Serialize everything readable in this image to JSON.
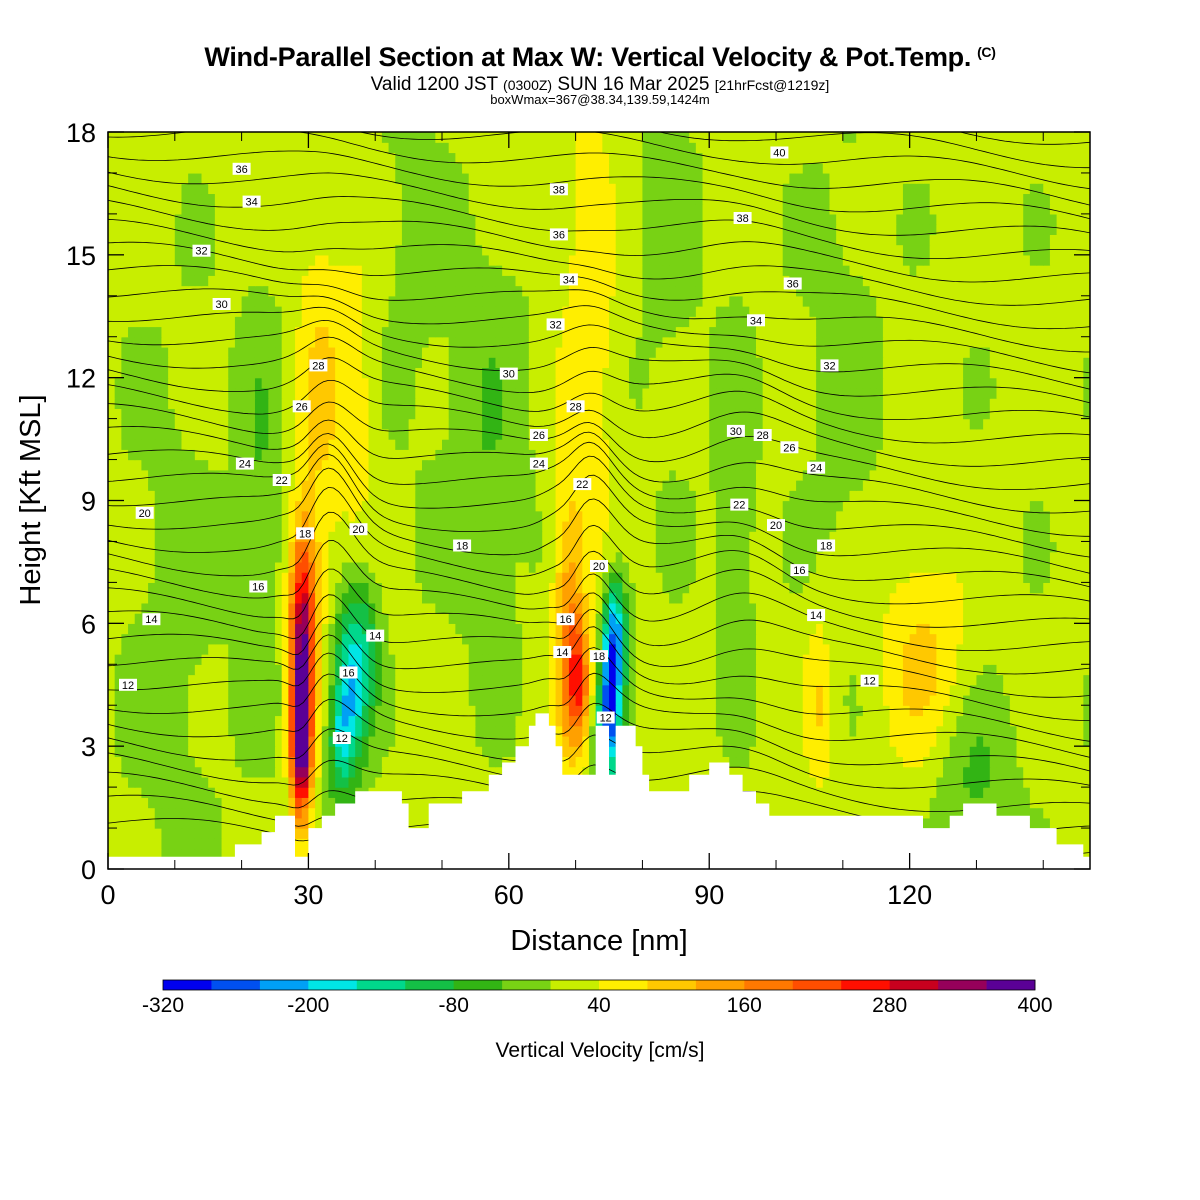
{
  "header": {
    "title": "Wind-Parallel Section at Max W: Vertical Velocity & Pot.Temp.",
    "copyright": "(C)",
    "valid_prefix": "Valid 1200 JST",
    "valid_z": "(0300Z)",
    "valid_date": "SUN 16 Mar 2025",
    "forecast": "[21hrFcst@1219z]",
    "boxmax": "boxWmax=367@38.34,139.59,1424m"
  },
  "colors": {
    "shading": [
      "#0000ee",
      "#0050f0",
      "#00a0f5",
      "#00e6e6",
      "#00d88c",
      "#14c046",
      "#32b414",
      "#78d214",
      "#c8ee00",
      "#ffee00",
      "#ffc800",
      "#ffa000",
      "#ff7800",
      "#ff4e00",
      "#ff0f00",
      "#c8001e",
      "#96005a",
      "#5a0096"
    ]
  },
  "chart_data": {
    "type": "heatmap",
    "title": "Wind-Parallel Section at Max W: Vertical Velocity & Pot.Temp.",
    "xlabel": "Distance [nm]",
    "ylabel": "Height [Kft MSL]",
    "xlim": [
      0,
      147
    ],
    "ylim": [
      0,
      18
    ],
    "xticks": [
      "0",
      "30",
      "60",
      "90",
      "120"
    ],
    "yticks": [
      "0",
      "3",
      "6",
      "9",
      "12",
      "15",
      "18"
    ],
    "colorbar": {
      "label": "Vertical Velocity [cm/s]",
      "levels": [
        -320,
        -280,
        -240,
        -200,
        -160,
        -120,
        -80,
        -40,
        0,
        40,
        80,
        120,
        160,
        200,
        240,
        280,
        320,
        360,
        400
      ],
      "tick_labels": [
        "-320",
        "-200",
        "-80",
        "40",
        "160",
        "280",
        "400"
      ]
    },
    "background_w": 10,
    "cells": [
      {
        "x": 29.0,
        "y": 4.2,
        "sx": 1.2,
        "sy": 2.0,
        "w": 300
      },
      {
        "x": 29.3,
        "y": 6.5,
        "sx": 1.6,
        "sy": 1.6,
        "w": 150
      },
      {
        "x": 28.8,
        "y": 2.8,
        "sx": 1.0,
        "sy": 1.0,
        "w": 180
      },
      {
        "x": 36.0,
        "y": 4.3,
        "sx": 1.6,
        "sy": 1.6,
        "w": -180
      },
      {
        "x": 38.5,
        "y": 5.3,
        "sx": 1.6,
        "sy": 1.3,
        "w": -110
      },
      {
        "x": 34.5,
        "y": 3.0,
        "sx": 1.2,
        "sy": 1.0,
        "w": -90
      },
      {
        "x": 31.5,
        "y": 11.5,
        "sx": 2.5,
        "sy": 3.5,
        "w": 70
      },
      {
        "x": 37.0,
        "y": 11.5,
        "sx": 2.2,
        "sy": 2.5,
        "w": 55
      },
      {
        "x": 69.0,
        "y": 5.8,
        "sx": 1.6,
        "sy": 2.2,
        "w": 140
      },
      {
        "x": 70.5,
        "y": 4.5,
        "sx": 1.2,
        "sy": 1.0,
        "w": 160
      },
      {
        "x": 72.0,
        "y": 13.0,
        "sx": 3.0,
        "sy": 5.0,
        "w": 60
      },
      {
        "x": 75.3,
        "y": 4.3,
        "sx": 1.1,
        "sy": 1.4,
        "w": -260
      },
      {
        "x": 76.3,
        "y": 5.8,
        "sx": 1.3,
        "sy": 1.0,
        "w": -150
      },
      {
        "x": 74.0,
        "y": 3.1,
        "sx": 1.0,
        "sy": 0.8,
        "w": -140
      },
      {
        "x": 122.0,
        "y": 5.0,
        "sx": 4.5,
        "sy": 2.0,
        "w": 80
      },
      {
        "x": 106.5,
        "y": 4.0,
        "sx": 1.6,
        "sy": 1.6,
        "w": 70
      },
      {
        "x": 23.0,
        "y": 9.0,
        "sx": 2.5,
        "sy": 3.5,
        "w": -50
      },
      {
        "x": 57.0,
        "y": 10.5,
        "sx": 4.0,
        "sy": 3.5,
        "w": -45
      },
      {
        "x": 94.0,
        "y": 9.0,
        "sx": 2.0,
        "sy": 3.0,
        "w": -45
      },
      {
        "x": 129.0,
        "y": 2.2,
        "sx": 4.5,
        "sy": 1.5,
        "w": -60
      },
      {
        "x": 10.0,
        "y": 5.5,
        "sx": 5.0,
        "sy": 5.0,
        "w": -25
      },
      {
        "x": 110.0,
        "y": 12.0,
        "sx": 4.0,
        "sy": 4.0,
        "w": -25
      },
      {
        "x": 84.0,
        "y": 15.0,
        "sx": 4.0,
        "sy": 4.0,
        "w": -20
      },
      {
        "x": 46.0,
        "y": 15.0,
        "sx": 4.0,
        "sy": 4.0,
        "w": -20
      }
    ],
    "terrain": [
      [
        0,
        0.3
      ],
      [
        19,
        0.3
      ],
      [
        19,
        0.6
      ],
      [
        23,
        0.6
      ],
      [
        23,
        0.9
      ],
      [
        25,
        0.9
      ],
      [
        25,
        1.3
      ],
      [
        28,
        1.3
      ],
      [
        28,
        0.3
      ],
      [
        30,
        0.3
      ],
      [
        30,
        1.0
      ],
      [
        32,
        1.0
      ],
      [
        32,
        1.3
      ],
      [
        34,
        1.3
      ],
      [
        34,
        1.6
      ],
      [
        37,
        1.6
      ],
      [
        37,
        1.9
      ],
      [
        44,
        1.9
      ],
      [
        44,
        1.6
      ],
      [
        45,
        1.6
      ],
      [
        45,
        1.0
      ],
      [
        48,
        1.0
      ],
      [
        48,
        1.6
      ],
      [
        53,
        1.6
      ],
      [
        53,
        1.9
      ],
      [
        57,
        1.9
      ],
      [
        57,
        2.3
      ],
      [
        59,
        2.3
      ],
      [
        59,
        2.6
      ],
      [
        61,
        2.6
      ],
      [
        61,
        3.0
      ],
      [
        63,
        3.0
      ],
      [
        63,
        3.5
      ],
      [
        64,
        3.5
      ],
      [
        64,
        3.8
      ],
      [
        66,
        3.8
      ],
      [
        66,
        3.5
      ],
      [
        67,
        3.5
      ],
      [
        67,
        3.0
      ],
      [
        68,
        3.0
      ],
      [
        68,
        2.3
      ],
      [
        73,
        2.3
      ],
      [
        73,
        3.5
      ],
      [
        75,
        3.5
      ],
      [
        75,
        2.3
      ],
      [
        76,
        2.3
      ],
      [
        76,
        3.5
      ],
      [
        79,
        3.5
      ],
      [
        79,
        3.0
      ],
      [
        80,
        3.0
      ],
      [
        80,
        2.3
      ],
      [
        81,
        2.3
      ],
      [
        81,
        1.9
      ],
      [
        87,
        1.9
      ],
      [
        87,
        2.3
      ],
      [
        90,
        2.3
      ],
      [
        90,
        2.6
      ],
      [
        93,
        2.6
      ],
      [
        93,
        2.3
      ],
      [
        95,
        2.3
      ],
      [
        95,
        1.9
      ],
      [
        97,
        1.9
      ],
      [
        97,
        1.6
      ],
      [
        99,
        1.6
      ],
      [
        99,
        1.3
      ],
      [
        122,
        1.3
      ],
      [
        122,
        1.0
      ],
      [
        126,
        1.0
      ],
      [
        126,
        1.3
      ],
      [
        128,
        1.3
      ],
      [
        128,
        1.6
      ],
      [
        133,
        1.6
      ],
      [
        133,
        1.3
      ],
      [
        138,
        1.3
      ],
      [
        138,
        1.0
      ],
      [
        142,
        1.0
      ],
      [
        142,
        0.6
      ],
      [
        146,
        0.6
      ],
      [
        146,
        0.3
      ],
      [
        147,
        0.3
      ],
      [
        147,
        0
      ],
      [
        0,
        0
      ]
    ],
    "theta_start": 11.4,
    "theta_step": 0.5,
    "theta_count": 60,
    "contour_labels": [
      {
        "text": "36",
        "x": 20,
        "y": 17.1
      },
      {
        "text": "34",
        "x": 21.5,
        "y": 16.3
      },
      {
        "text": "32",
        "x": 14,
        "y": 15.1
      },
      {
        "text": "30",
        "x": 17,
        "y": 13.8
      },
      {
        "text": "28",
        "x": 31.5,
        "y": 12.3
      },
      {
        "text": "26",
        "x": 29,
        "y": 11.3
      },
      {
        "text": "24",
        "x": 20.5,
        "y": 9.9
      },
      {
        "text": "22",
        "x": 26,
        "y": 9.5
      },
      {
        "text": "20",
        "x": 5.5,
        "y": 8.7
      },
      {
        "text": "18",
        "x": 29.5,
        "y": 8.2
      },
      {
        "text": "20",
        "x": 37.5,
        "y": 8.3
      },
      {
        "text": "16",
        "x": 22.5,
        "y": 6.9
      },
      {
        "text": "14",
        "x": 6.5,
        "y": 6.1
      },
      {
        "text": "14",
        "x": 40,
        "y": 5.7
      },
      {
        "text": "16",
        "x": 36,
        "y": 4.8
      },
      {
        "text": "12",
        "x": 3,
        "y": 4.5
      },
      {
        "text": "12",
        "x": 35,
        "y": 3.2
      },
      {
        "text": "18",
        "x": 53,
        "y": 7.9
      },
      {
        "text": "38",
        "x": 67.5,
        "y": 16.6
      },
      {
        "text": "36",
        "x": 67.5,
        "y": 15.5
      },
      {
        "text": "34",
        "x": 69,
        "y": 14.4
      },
      {
        "text": "32",
        "x": 67,
        "y": 13.3
      },
      {
        "text": "30",
        "x": 60,
        "y": 12.1
      },
      {
        "text": "28",
        "x": 70,
        "y": 11.3
      },
      {
        "text": "26",
        "x": 64.5,
        "y": 10.6
      },
      {
        "text": "24",
        "x": 64.5,
        "y": 9.9
      },
      {
        "text": "22",
        "x": 71,
        "y": 9.4
      },
      {
        "text": "20",
        "x": 73.5,
        "y": 7.4
      },
      {
        "text": "16",
        "x": 68.5,
        "y": 6.1
      },
      {
        "text": "14",
        "x": 68,
        "y": 5.3
      },
      {
        "text": "18",
        "x": 73.5,
        "y": 5.2
      },
      {
        "text": "12",
        "x": 74.5,
        "y": 3.7
      },
      {
        "text": "40",
        "x": 100.5,
        "y": 17.5
      },
      {
        "text": "38",
        "x": 95,
        "y": 15.9
      },
      {
        "text": "36",
        "x": 102.5,
        "y": 14.3
      },
      {
        "text": "34",
        "x": 97,
        "y": 13.4
      },
      {
        "text": "32",
        "x": 108,
        "y": 12.3
      },
      {
        "text": "30",
        "x": 94,
        "y": 10.7
      },
      {
        "text": "28",
        "x": 98,
        "y": 10.6
      },
      {
        "text": "26",
        "x": 102,
        "y": 10.3
      },
      {
        "text": "24",
        "x": 106,
        "y": 9.8
      },
      {
        "text": "22",
        "x": 94.5,
        "y": 8.9
      },
      {
        "text": "20",
        "x": 100,
        "y": 8.4
      },
      {
        "text": "18",
        "x": 107.5,
        "y": 7.9
      },
      {
        "text": "16",
        "x": 103.5,
        "y": 7.3
      },
      {
        "text": "14",
        "x": 106,
        "y": 6.2
      },
      {
        "text": "12",
        "x": 114,
        "y": 4.6
      }
    ]
  }
}
